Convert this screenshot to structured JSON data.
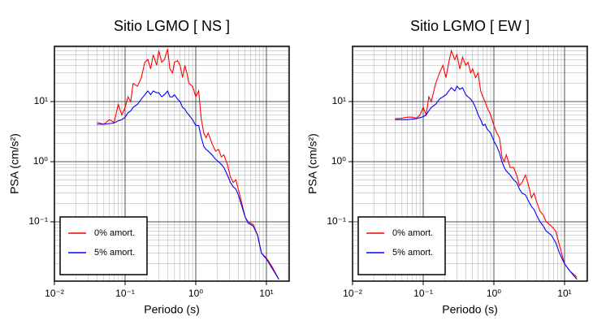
{
  "chart_data": [
    {
      "type": "line",
      "title": "Sitio LGMO [ NS ]",
      "x_label": "Periodo (s)",
      "y_label": "PSA (cm/s²)",
      "log_x": true,
      "log_y": true,
      "grid": true,
      "legend": "lower left",
      "xlim": [
        0.01,
        21
      ],
      "ylim": [
        0.0103,
        83
      ],
      "xticks": [
        {
          "value": 0.01,
          "label": "10⁻²"
        },
        {
          "value": 0.1,
          "label": "10⁻¹"
        },
        {
          "value": 1,
          "label": "10⁰"
        },
        {
          "value": 10,
          "label": "10¹"
        }
      ],
      "yticks": [
        {
          "value": 0.1,
          "label": "10⁻¹"
        },
        {
          "value": 1,
          "label": "10⁰"
        },
        {
          "value": 10,
          "label": "10¹"
        }
      ],
      "x": [
        0.04,
        0.05,
        0.06,
        0.07,
        0.08,
        0.09,
        0.1,
        0.11,
        0.12,
        0.13,
        0.15,
        0.17,
        0.19,
        0.21,
        0.23,
        0.25,
        0.28,
        0.3,
        0.33,
        0.36,
        0.4,
        0.43,
        0.47,
        0.5,
        0.55,
        0.6,
        0.65,
        0.7,
        0.75,
        0.8,
        0.9,
        1.0,
        1.1,
        1.2,
        1.3,
        1.4,
        1.5,
        1.7,
        1.9,
        2.1,
        2.3,
        2.5,
        2.8,
        3.1,
        3.4,
        3.7,
        4,
        4.5,
        5,
        5.5,
        6.5,
        7.5,
        8.5,
        10,
        12,
        15
      ],
      "series": [
        {
          "name": "0% amort.",
          "color": "#ff0000",
          "values": [
            4.5,
            4.2,
            5,
            4.5,
            9,
            6,
            8,
            12,
            10,
            20,
            18,
            25,
            45,
            50,
            35,
            60,
            40,
            70,
            45,
            50,
            75,
            35,
            30,
            45,
            48,
            40,
            25,
            40,
            30,
            20,
            18,
            12,
            15,
            5,
            3,
            2.5,
            3,
            2,
            1.5,
            1.6,
            1.2,
            1.3,
            0.9,
            0.55,
            0.45,
            0.5,
            0.35,
            0.2,
            0.12,
            0.1,
            0.09,
            0.06,
            0.03,
            0.025,
            0.018,
            0.011
          ]
        },
        {
          "name": "5% amort.",
          "color": "#0000ff",
          "values": [
            4.2,
            4.2,
            4.3,
            4.4,
            4.8,
            5,
            5.5,
            6.5,
            7,
            8,
            9,
            11,
            13,
            15,
            13,
            15,
            14,
            14,
            12,
            13,
            15,
            12,
            12,
            13,
            11,
            10,
            8,
            7.5,
            6.5,
            6,
            5,
            4,
            4,
            2.5,
            1.8,
            1.6,
            1.5,
            1.3,
            1.1,
            1.0,
            0.9,
            0.8,
            0.6,
            0.45,
            0.38,
            0.35,
            0.28,
            0.18,
            0.12,
            0.095,
            0.085,
            0.06,
            0.03,
            0.024,
            0.017,
            0.011
          ]
        }
      ]
    },
    {
      "type": "line",
      "title": "Sitio LGMO [ EW ]",
      "x_label": "Periodo (s)",
      "y_label": "PSA (cm/s²)",
      "log_x": true,
      "log_y": true,
      "grid": true,
      "legend": "lower left",
      "xlim": [
        0.01,
        21
      ],
      "ylim": [
        0.0103,
        83
      ],
      "xticks": [
        {
          "value": 0.01,
          "label": "10⁻²"
        },
        {
          "value": 0.1,
          "label": "10⁻¹"
        },
        {
          "value": 1,
          "label": "10⁰"
        },
        {
          "value": 10,
          "label": "10¹"
        }
      ],
      "yticks": [
        {
          "value": 0.1,
          "label": "10⁻¹"
        },
        {
          "value": 1,
          "label": "10⁰"
        },
        {
          "value": 10,
          "label": "10¹"
        }
      ],
      "x": [
        0.04,
        0.05,
        0.06,
        0.07,
        0.08,
        0.09,
        0.1,
        0.11,
        0.12,
        0.13,
        0.15,
        0.17,
        0.19,
        0.21,
        0.23,
        0.25,
        0.28,
        0.3,
        0.33,
        0.36,
        0.4,
        0.43,
        0.47,
        0.5,
        0.55,
        0.6,
        0.65,
        0.7,
        0.75,
        0.8,
        0.9,
        1.0,
        1.1,
        1.2,
        1.3,
        1.4,
        1.5,
        1.7,
        1.9,
        2.1,
        2.3,
        2.5,
        2.8,
        3.1,
        3.4,
        3.7,
        4,
        4.5,
        5,
        5.5,
        6.5,
        7.5,
        8.5,
        10,
        12,
        15
      ],
      "series": [
        {
          "name": "0% amort.",
          "color": "#ff0000",
          "values": [
            5.2,
            5.3,
            5.5,
            5.5,
            5.3,
            6,
            8,
            6,
            12,
            10,
            20,
            30,
            40,
            25,
            45,
            70,
            50,
            60,
            35,
            55,
            40,
            45,
            30,
            35,
            25,
            30,
            15,
            12,
            10,
            8,
            6,
            4,
            3,
            2.5,
            1.2,
            1.0,
            1.3,
            0.8,
            0.8,
            0.6,
            0.4,
            0.45,
            0.6,
            0.4,
            0.25,
            0.3,
            0.22,
            0.15,
            0.13,
            0.1,
            0.085,
            0.07,
            0.04,
            0.02,
            0.015,
            0.012
          ]
        },
        {
          "name": "5% amort.",
          "color": "#0000ff",
          "values": [
            5.0,
            5.0,
            5.0,
            5.1,
            5.2,
            5.4,
            5.6,
            6,
            7,
            8,
            9,
            11,
            12,
            13,
            15,
            17,
            15,
            18,
            16,
            17,
            13,
            12,
            11,
            10,
            8,
            6,
            5,
            4,
            4.2,
            3.5,
            3,
            2.2,
            1.8,
            1.4,
            1.0,
            0.8,
            0.7,
            0.6,
            0.5,
            0.45,
            0.35,
            0.3,
            0.28,
            0.22,
            0.18,
            0.16,
            0.13,
            0.1,
            0.085,
            0.07,
            0.06,
            0.045,
            0.03,
            0.02,
            0.015,
            0.011
          ]
        }
      ]
    }
  ]
}
